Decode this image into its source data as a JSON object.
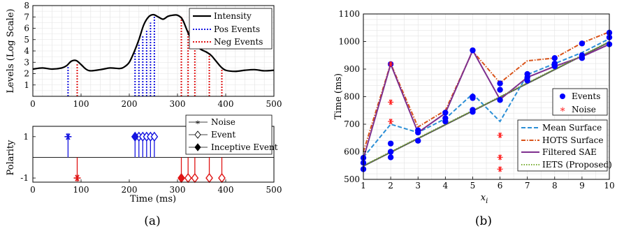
{
  "colors": {
    "intensity": "#000000",
    "pos_events": "#1515e0",
    "neg_events": "#e01515",
    "grid": "#e3e3e3",
    "mean_surface": "#2b8fd6",
    "hots_surface": "#d95319",
    "filtered_sae": "#7e2f8e",
    "iets": "#77ac30",
    "events_marker": "#0000ff",
    "noise_marker": "#ff2020"
  },
  "chart_data": [
    {
      "type": "line",
      "panel": "a-top",
      "title": "",
      "xlabel": "",
      "ylabel": "Levels (Log Scale)",
      "xlim": [
        0,
        500
      ],
      "ylim": [
        0,
        8
      ],
      "x_ticks": [
        0,
        100,
        200,
        300,
        400,
        500
      ],
      "y_ticks": [
        1,
        2,
        3,
        4,
        5,
        6,
        7,
        8
      ],
      "grid": true,
      "legend_position": "top-right",
      "series": [
        {
          "name": "Intensity",
          "x": [
            0,
            20,
            40,
            60,
            70,
            80,
            90,
            100,
            110,
            120,
            140,
            160,
            180,
            190,
            200,
            210,
            220,
            230,
            240,
            250,
            260,
            270,
            280,
            290,
            300,
            310,
            320,
            330,
            340,
            350,
            360,
            370,
            380,
            390,
            400,
            420,
            440,
            460,
            480,
            500
          ],
          "y": [
            2.4,
            2.5,
            2.4,
            2.5,
            2.7,
            3.1,
            3.15,
            2.8,
            2.4,
            2.25,
            2.35,
            2.5,
            2.45,
            2.6,
            3.0,
            3.9,
            5.0,
            6.3,
            7.0,
            7.2,
            7.0,
            6.8,
            7.05,
            7.15,
            7.15,
            6.8,
            5.8,
            4.9,
            4.4,
            4.1,
            3.9,
            3.6,
            3.1,
            2.6,
            2.3,
            2.2,
            2.3,
            2.35,
            2.25,
            2.3
          ]
        },
        {
          "name": "Pos Events",
          "x": [
            73,
            212,
            220,
            228,
            236,
            244,
            252
          ],
          "y": [
            2.7,
            4.0,
            4.7,
            5.3,
            5.9,
            6.5,
            7.2
          ]
        },
        {
          "name": "Neg Events",
          "x": [
            92,
            308,
            322,
            336,
            366,
            392
          ],
          "y": [
            2.95,
            7.1,
            5.8,
            4.5,
            3.85,
            2.5
          ]
        }
      ],
      "legend": [
        "Intensity",
        "Pos Events",
        "Neg Events"
      ]
    },
    {
      "type": "stem",
      "panel": "a-bottom",
      "title": "",
      "xlabel": "Time (ms)",
      "ylabel": "Polarity",
      "xlim": [
        0,
        500
      ],
      "ylim": [
        -1.2,
        1.5
      ],
      "x_ticks": [
        0,
        100,
        200,
        300,
        400,
        500
      ],
      "y_tick_labels": [
        "1",
        "-1"
      ],
      "legend_position": "top-right",
      "series": [
        {
          "name": "Noise",
          "marker": "asterisk",
          "points": [
            {
              "x": 73,
              "y": 1
            },
            {
              "x": 92,
              "y": -1
            }
          ]
        },
        {
          "name": "Event",
          "marker": "diamond-open",
          "points": [
            {
              "x": 220,
              "y": 1
            },
            {
              "x": 228,
              "y": 1
            },
            {
              "x": 236,
              "y": 1
            },
            {
              "x": 244,
              "y": 1
            },
            {
              "x": 252,
              "y": 1
            },
            {
              "x": 322,
              "y": -1
            },
            {
              "x": 336,
              "y": -1
            },
            {
              "x": 366,
              "y": -1
            },
            {
              "x": 392,
              "y": -1
            }
          ]
        },
        {
          "name": "Inceptive Event",
          "marker": "diamond-filled",
          "points": [
            {
              "x": 212,
              "y": 1
            },
            {
              "x": 308,
              "y": -1
            }
          ]
        }
      ],
      "legend": [
        "Noise",
        "Event",
        "Inceptive Event"
      ]
    },
    {
      "type": "line",
      "panel": "b",
      "title": "",
      "xlabel": "x",
      "xlabel_sub": "i",
      "ylabel": "Time (ms)",
      "xlim": [
        1,
        10
      ],
      "ylim": [
        500,
        1100
      ],
      "x_ticks": [
        1,
        2,
        3,
        4,
        5,
        6,
        7,
        8,
        9,
        10
      ],
      "y_ticks": [
        500,
        600,
        700,
        800,
        900,
        1000,
        1100
      ],
      "grid": true,
      "x": [
        1,
        2,
        3,
        4,
        5,
        6,
        7,
        8,
        9,
        10
      ],
      "series": [
        {
          "name": "Mean Surface",
          "style": "dashed",
          "values": [
            580,
            700,
            670,
            720,
            810,
            710,
            880,
            920,
            960,
            1010
          ]
        },
        {
          "name": "HOTS Surface",
          "style": "dashdot",
          "values": [
            600,
            920,
            690,
            750,
            965,
            850,
            930,
            940,
            995,
            1035
          ]
        },
        {
          "name": "Filtered SAE",
          "style": "solid",
          "values": [
            575,
            918,
            670,
            740,
            968,
            790,
            870,
            910,
            945,
            990
          ]
        },
        {
          "name": "IETS (Proposed)",
          "style": "dotted",
          "values": [
            550,
            600,
            650,
            700,
            750,
            800,
            850,
            900,
            950,
            1000
          ]
        }
      ],
      "scatter": [
        {
          "name": "Events",
          "marker": "filled-circle",
          "points": [
            [
              1,
              537
            ],
            [
              1,
              560
            ],
            [
              1,
              578
            ],
            [
              2,
              580
            ],
            [
              2,
              600
            ],
            [
              2,
              630
            ],
            [
              2,
              918
            ],
            [
              3,
              640
            ],
            [
              3,
              670
            ],
            [
              3,
              678
            ],
            [
              4,
              710
            ],
            [
              4,
              722
            ],
            [
              4,
              742
            ],
            [
              5,
              745
            ],
            [
              5,
              752
            ],
            [
              5,
              795
            ],
            [
              5,
              800
            ],
            [
              5,
              968
            ],
            [
              6,
              788
            ],
            [
              6,
              825
            ],
            [
              6,
              848
            ],
            [
              7,
              858
            ],
            [
              7,
              870
            ],
            [
              7,
              882
            ],
            [
              8,
              910
            ],
            [
              8,
              920
            ],
            [
              8,
              940
            ],
            [
              9,
              940
            ],
            [
              9,
              950
            ],
            [
              9,
              993
            ],
            [
              10,
              990
            ],
            [
              10,
              1015
            ],
            [
              10,
              1032
            ]
          ]
        },
        {
          "name": "Noise",
          "marker": "asterisk",
          "points": [
            [
              2,
              918
            ],
            [
              2,
              780
            ],
            [
              2,
              710
            ],
            [
              6,
              660
            ],
            [
              6,
              580
            ],
            [
              6,
              537
            ]
          ]
        }
      ],
      "legend_top": [
        "Events",
        "Noise"
      ],
      "legend_top_position": "center-right",
      "legend_bottom": [
        "Mean Surface",
        "HOTS Surface",
        "Filtered SAE",
        "IETS (Proposed)"
      ],
      "legend_bottom_position": "bottom-right"
    }
  ],
  "captions": {
    "a": "(a)",
    "b": "(b)"
  }
}
